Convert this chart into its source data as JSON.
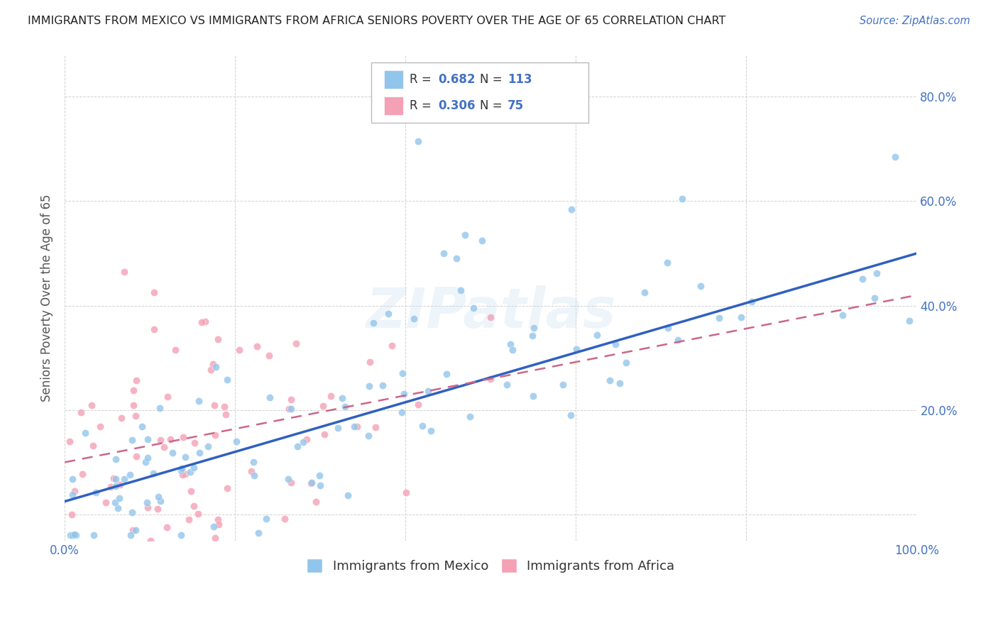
{
  "title": "IMMIGRANTS FROM MEXICO VS IMMIGRANTS FROM AFRICA SENIORS POVERTY OVER THE AGE OF 65 CORRELATION CHART",
  "source": "Source: ZipAtlas.com",
  "ylabel": "Seniors Poverty Over the Age of 65",
  "xlim": [
    0,
    1.0
  ],
  "ylim": [
    -0.05,
    0.88
  ],
  "xtick_positions": [
    0.0,
    0.2,
    0.4,
    0.6,
    0.8,
    1.0
  ],
  "xticklabels_shown": {
    "0.0": "0.0%",
    "1.0": "100.0%"
  },
  "ytick_positions": [
    0.0,
    0.2,
    0.4,
    0.6,
    0.8
  ],
  "yticklabels_right": {
    "0.0": "",
    "0.2": "20.0%",
    "0.4": "40.0%",
    "0.6": "60.0%",
    "0.8": "80.0%"
  },
  "mexico_color": "#92C5EB",
  "africa_color": "#F4A0B5",
  "mexico_R": 0.682,
  "mexico_N": 113,
  "africa_R": 0.306,
  "africa_N": 75,
  "watermark": "ZIPatlas",
  "legend_label_mexico": "Immigrants from Mexico",
  "legend_label_africa": "Immigrants from Africa",
  "background_color": "#ffffff",
  "grid_color": "#cccccc",
  "title_color": "#222222",
  "axis_label_color": "#555555",
  "tick_color": "#4472c4",
  "line_color_mexico": "#3060c0",
  "line_color_africa": "#cc6688",
  "mexico_line_start_y": 0.025,
  "mexico_line_end_y": 0.5,
  "africa_line_start_y": 0.1,
  "africa_line_end_y": 0.42
}
